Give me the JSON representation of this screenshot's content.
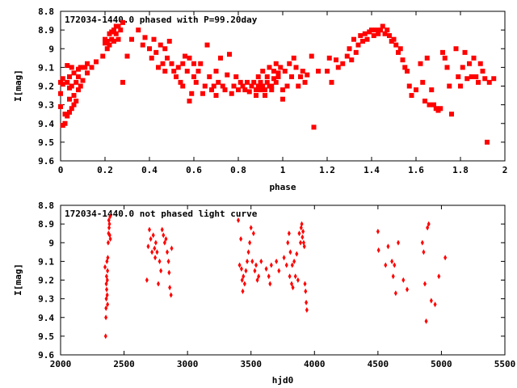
{
  "colors": {
    "series": "#ff0000"
  },
  "chart_data": [
    {
      "type": "scatter",
      "title": "172034-1440.0 phased with P=99.20day",
      "xlabel": "phase",
      "ylabel": "I[mag]",
      "xlim": [
        0,
        2
      ],
      "ylim": [
        8.8,
        9.6
      ],
      "y_inverted": true,
      "xticks": [
        0,
        0.2,
        0.4,
        0.6,
        0.8,
        1,
        1.2,
        1.4,
        1.6,
        1.8,
        2
      ],
      "xtick_labels": [
        "0",
        "0.2",
        "0.4",
        "0.6",
        "0.8",
        "1",
        "1.2",
        "1.4",
        "1.6",
        "1.8",
        "2"
      ],
      "yticks": [
        8.8,
        8.9,
        9.0,
        9.1,
        9.2,
        9.3,
        9.4,
        9.5,
        9.6
      ],
      "ytick_labels": [
        "8.8",
        "8.9",
        "9",
        "9.1",
        "9.2",
        "9.3",
        "9.4",
        "9.5",
        "9.6"
      ],
      "marker": "square",
      "points": [
        [
          0.0,
          9.18
        ],
        [
          0.0,
          9.24
        ],
        [
          0.0,
          9.31
        ],
        [
          0.01,
          9.16
        ],
        [
          0.01,
          9.19
        ],
        [
          0.01,
          9.41
        ],
        [
          0.02,
          9.4
        ],
        [
          0.02,
          9.35
        ],
        [
          0.03,
          9.09
        ],
        [
          0.03,
          9.18
        ],
        [
          0.03,
          9.36
        ],
        [
          0.04,
          9.15
        ],
        [
          0.04,
          9.21
        ],
        [
          0.04,
          9.27
        ],
        [
          0.04,
          9.34
        ],
        [
          0.05,
          9.1
        ],
        [
          0.05,
          9.2
        ],
        [
          0.05,
          9.32
        ],
        [
          0.06,
          9.13
        ],
        [
          0.06,
          9.25
        ],
        [
          0.06,
          9.3
        ],
        [
          0.07,
          9.18
        ],
        [
          0.07,
          9.28
        ],
        [
          0.08,
          9.11
        ],
        [
          0.08,
          9.22
        ],
        [
          0.08,
          9.15
        ],
        [
          0.09,
          9.2
        ],
        [
          0.09,
          9.1
        ],
        [
          0.1,
          9.17
        ],
        [
          0.11,
          9.1
        ],
        [
          0.12,
          9.08
        ],
        [
          0.12,
          9.13
        ],
        [
          0.14,
          9.1
        ],
        [
          0.16,
          9.07
        ],
        [
          0.19,
          9.04
        ],
        [
          0.2,
          8.97
        ],
        [
          0.2,
          8.95
        ],
        [
          0.21,
          8.96
        ],
        [
          0.21,
          9.0
        ],
        [
          0.22,
          8.92
        ],
        [
          0.22,
          8.98
        ],
        [
          0.23,
          8.95
        ],
        [
          0.23,
          8.91
        ],
        [
          0.24,
          8.9
        ],
        [
          0.24,
          8.96
        ],
        [
          0.25,
          8.88
        ],
        [
          0.25,
          8.92
        ],
        [
          0.26,
          8.95
        ],
        [
          0.26,
          8.88
        ],
        [
          0.27,
          8.9
        ],
        [
          0.28,
          8.86
        ],
        [
          0.28,
          9.18
        ],
        [
          0.3,
          9.04
        ],
        [
          0.32,
          8.95
        ],
        [
          0.35,
          8.9
        ],
        [
          0.37,
          8.98
        ],
        [
          0.38,
          8.94
        ],
        [
          0.4,
          9.0
        ],
        [
          0.41,
          9.05
        ],
        [
          0.42,
          8.95
        ],
        [
          0.43,
          9.02
        ],
        [
          0.44,
          9.1
        ],
        [
          0.45,
          8.98
        ],
        [
          0.46,
          9.08
        ],
        [
          0.47,
          9.12
        ],
        [
          0.47,
          9.0
        ],
        [
          0.48,
          9.05
        ],
        [
          0.49,
          8.96
        ],
        [
          0.5,
          9.08
        ],
        [
          0.51,
          9.12
        ],
        [
          0.52,
          9.15
        ],
        [
          0.53,
          9.1
        ],
        [
          0.54,
          9.18
        ],
        [
          0.55,
          9.08
        ],
        [
          0.55,
          9.2
        ],
        [
          0.56,
          9.04
        ],
        [
          0.57,
          9.12
        ],
        [
          0.58,
          9.05
        ],
        [
          0.58,
          9.28
        ],
        [
          0.59,
          9.24
        ],
        [
          0.6,
          9.15
        ],
        [
          0.6,
          9.08
        ],
        [
          0.61,
          9.18
        ],
        [
          0.62,
          9.12
        ],
        [
          0.63,
          9.08
        ],
        [
          0.64,
          9.24
        ],
        [
          0.65,
          9.2
        ],
        [
          0.66,
          8.98
        ],
        [
          0.67,
          9.15
        ],
        [
          0.68,
          9.22
        ],
        [
          0.69,
          9.2
        ],
        [
          0.7,
          9.25
        ],
        [
          0.7,
          9.12
        ],
        [
          0.71,
          9.18
        ],
        [
          0.72,
          9.05
        ],
        [
          0.73,
          9.2
        ],
        [
          0.74,
          9.22
        ],
        [
          0.75,
          9.14
        ],
        [
          0.76,
          9.03
        ],
        [
          0.77,
          9.24
        ],
        [
          0.78,
          9.2
        ],
        [
          0.79,
          9.15
        ],
        [
          0.8,
          9.22
        ],
        [
          0.81,
          9.18
        ],
        [
          0.82,
          9.2
        ],
        [
          0.83,
          9.22
        ],
        [
          0.84,
          9.18
        ],
        [
          0.85,
          9.23
        ],
        [
          0.86,
          9.2
        ],
        [
          0.87,
          9.18
        ],
        [
          0.88,
          9.22
        ],
        [
          0.88,
          9.25
        ],
        [
          0.89,
          9.2
        ],
        [
          0.89,
          9.15
        ],
        [
          0.9,
          9.22
        ],
        [
          0.9,
          9.18
        ],
        [
          0.91,
          9.2
        ],
        [
          0.91,
          9.12
        ],
        [
          0.92,
          9.22
        ],
        [
          0.92,
          9.25
        ],
        [
          0.93,
          9.18
        ],
        [
          0.93,
          9.15
        ],
        [
          0.94,
          9.2
        ],
        [
          0.94,
          9.1
        ],
        [
          0.95,
          9.2
        ],
        [
          0.95,
          9.22
        ],
        [
          0.96,
          9.16
        ],
        [
          0.96,
          9.12
        ],
        [
          0.97,
          9.18
        ],
        [
          0.97,
          9.08
        ],
        [
          0.98,
          9.15
        ],
        [
          0.98,
          9.13
        ],
        [
          0.99,
          9.1
        ],
        [
          1.0,
          9.22
        ],
        [
          1.0,
          9.27
        ],
        [
          1.01,
          9.12
        ],
        [
          1.02,
          9.2
        ],
        [
          1.03,
          9.08
        ],
        [
          1.04,
          9.15
        ],
        [
          1.05,
          9.05
        ],
        [
          1.06,
          9.1
        ],
        [
          1.07,
          9.2
        ],
        [
          1.08,
          9.15
        ],
        [
          1.09,
          9.12
        ],
        [
          1.1,
          9.18
        ],
        [
          1.11,
          9.14
        ],
        [
          1.13,
          9.04
        ],
        [
          1.14,
          9.42
        ],
        [
          1.16,
          9.12
        ],
        [
          1.2,
          9.12
        ],
        [
          1.21,
          9.05
        ],
        [
          1.22,
          9.18
        ],
        [
          1.24,
          9.06
        ],
        [
          1.25,
          9.1
        ],
        [
          1.27,
          9.08
        ],
        [
          1.29,
          9.04
        ],
        [
          1.3,
          9.0
        ],
        [
          1.31,
          9.06
        ],
        [
          1.32,
          8.95
        ],
        [
          1.33,
          9.02
        ],
        [
          1.34,
          8.98
        ],
        [
          1.35,
          8.93
        ],
        [
          1.36,
          8.96
        ],
        [
          1.37,
          8.92
        ],
        [
          1.38,
          8.95
        ],
        [
          1.39,
          8.91
        ],
        [
          1.4,
          8.9
        ],
        [
          1.41,
          8.93
        ],
        [
          1.42,
          8.9
        ],
        [
          1.43,
          8.92
        ],
        [
          1.44,
          8.9
        ],
        [
          1.45,
          8.88
        ],
        [
          1.46,
          8.92
        ],
        [
          1.47,
          8.9
        ],
        [
          1.48,
          8.93
        ],
        [
          1.49,
          8.96
        ],
        [
          1.5,
          8.95
        ],
        [
          1.51,
          8.98
        ],
        [
          1.52,
          9.02
        ],
        [
          1.53,
          9.0
        ],
        [
          1.54,
          9.06
        ],
        [
          1.55,
          9.1
        ],
        [
          1.56,
          9.12
        ],
        [
          1.57,
          9.2
        ],
        [
          1.58,
          9.25
        ],
        [
          1.6,
          9.22
        ],
        [
          1.62,
          9.08
        ],
        [
          1.63,
          9.18
        ],
        [
          1.64,
          9.28
        ],
        [
          1.65,
          9.05
        ],
        [
          1.66,
          9.3
        ],
        [
          1.67,
          9.22
        ],
        [
          1.68,
          9.3
        ],
        [
          1.69,
          9.32
        ],
        [
          1.7,
          9.33
        ],
        [
          1.71,
          9.32
        ],
        [
          1.72,
          9.02
        ],
        [
          1.73,
          9.05
        ],
        [
          1.74,
          9.1
        ],
        [
          1.75,
          9.2
        ],
        [
          1.76,
          9.35
        ],
        [
          1.78,
          9.0
        ],
        [
          1.79,
          9.15
        ],
        [
          1.8,
          9.2
        ],
        [
          1.81,
          9.1
        ],
        [
          1.82,
          9.02
        ],
        [
          1.83,
          9.16
        ],
        [
          1.84,
          9.08
        ],
        [
          1.85,
          9.15
        ],
        [
          1.86,
          9.05
        ],
        [
          1.87,
          9.15
        ],
        [
          1.88,
          9.18
        ],
        [
          1.89,
          9.08
        ],
        [
          1.9,
          9.12
        ],
        [
          1.91,
          9.16
        ],
        [
          1.92,
          9.5
        ],
        [
          1.93,
          9.18
        ],
        [
          1.95,
          9.16
        ]
      ]
    },
    {
      "type": "scatter",
      "title": "172034-1440.0 not phased light curve",
      "xlabel": "hjd0",
      "ylabel": "I[mag]",
      "xlim": [
        2000,
        5500
      ],
      "ylim": [
        8.8,
        9.6
      ],
      "y_inverted": true,
      "xticks": [
        2000,
        2500,
        3000,
        3500,
        4000,
        4500,
        5000,
        5500
      ],
      "xtick_labels": [
        "2000",
        "2500",
        "3000",
        "3500",
        "4000",
        "4500",
        "5000",
        "5500"
      ],
      "yticks": [
        8.8,
        8.9,
        9.0,
        9.1,
        9.2,
        9.3,
        9.4,
        9.5,
        9.6
      ],
      "ytick_labels": [
        "8.8",
        "8.9",
        "9",
        "9.1",
        "9.2",
        "9.3",
        "9.4",
        "9.5",
        "9.6"
      ],
      "marker": "diamond",
      "points": [
        [
          2350,
          9.13
        ],
        [
          2355,
          9.5
        ],
        [
          2357,
          9.4
        ],
        [
          2358,
          9.35
        ],
        [
          2360,
          9.3
        ],
        [
          2360,
          9.22
        ],
        [
          2362,
          9.18
        ],
        [
          2363,
          9.25
        ],
        [
          2365,
          9.1
        ],
        [
          2367,
          9.28
        ],
        [
          2368,
          9.2
        ],
        [
          2370,
          9.33
        ],
        [
          2370,
          9.15
        ],
        [
          2372,
          9.08
        ],
        [
          2375,
          9.0
        ],
        [
          2378,
          8.95
        ],
        [
          2380,
          8.88
        ],
        [
          2382,
          8.92
        ],
        [
          2385,
          8.9
        ],
        [
          2387,
          8.96
        ],
        [
          2390,
          8.86
        ],
        [
          2392,
          8.98
        ],
        [
          2680,
          9.2
        ],
        [
          2690,
          9.02
        ],
        [
          2700,
          8.93
        ],
        [
          2710,
          8.98
        ],
        [
          2720,
          9.05
        ],
        [
          2730,
          8.96
        ],
        [
          2740,
          9.03
        ],
        [
          2745,
          9.08
        ],
        [
          2750,
          9.0
        ],
        [
          2760,
          9.05
        ],
        [
          2770,
          9.22
        ],
        [
          2780,
          9.1
        ],
        [
          2790,
          9.15
        ],
        [
          2800,
          8.93
        ],
        [
          2810,
          8.96
        ],
        [
          2820,
          9.0
        ],
        [
          2830,
          8.98
        ],
        [
          2840,
          9.05
        ],
        [
          2850,
          9.1
        ],
        [
          2855,
          9.16
        ],
        [
          2860,
          9.24
        ],
        [
          2870,
          9.28
        ],
        [
          2875,
          9.03
        ],
        [
          3400,
          8.88
        ],
        [
          3410,
          9.12
        ],
        [
          3420,
          8.98
        ],
        [
          3425,
          9.14
        ],
        [
          3430,
          9.2
        ],
        [
          3435,
          9.26
        ],
        [
          3440,
          9.18
        ],
        [
          3450,
          9.22
        ],
        [
          3460,
          9.15
        ],
        [
          3470,
          9.1
        ],
        [
          3480,
          9.05
        ],
        [
          3490,
          9.0
        ],
        [
          3500,
          8.92
        ],
        [
          3510,
          9.1
        ],
        [
          3520,
          8.95
        ],
        [
          3530,
          9.15
        ],
        [
          3540,
          9.12
        ],
        [
          3550,
          9.2
        ],
        [
          3560,
          9.18
        ],
        [
          3580,
          9.1
        ],
        [
          3620,
          9.14
        ],
        [
          3640,
          9.18
        ],
        [
          3650,
          9.22
        ],
        [
          3660,
          9.12
        ],
        [
          3700,
          9.1
        ],
        [
          3720,
          9.15
        ],
        [
          3760,
          9.08
        ],
        [
          3780,
          9.12
        ],
        [
          3790,
          9.0
        ],
        [
          3800,
          8.95
        ],
        [
          3805,
          9.18
        ],
        [
          3810,
          9.05
        ],
        [
          3820,
          9.22
        ],
        [
          3825,
          9.12
        ],
        [
          3830,
          9.24
        ],
        [
          3840,
          9.1
        ],
        [
          3850,
          9.18
        ],
        [
          3860,
          9.06
        ],
        [
          3870,
          9.2
        ],
        [
          3880,
          8.95
        ],
        [
          3890,
          9.0
        ],
        [
          3895,
          8.92
        ],
        [
          3900,
          8.9
        ],
        [
          3905,
          8.97
        ],
        [
          3910,
          8.94
        ],
        [
          3915,
          9.0
        ],
        [
          3920,
          9.02
        ],
        [
          3925,
          9.22
        ],
        [
          3930,
          9.26
        ],
        [
          3935,
          9.32
        ],
        [
          3940,
          9.36
        ],
        [
          4500,
          8.94
        ],
        [
          4505,
          9.04
        ],
        [
          4560,
          9.12
        ],
        [
          4580,
          9.02
        ],
        [
          4610,
          9.1
        ],
        [
          4620,
          9.18
        ],
        [
          4630,
          9.12
        ],
        [
          4640,
          9.27
        ],
        [
          4660,
          9.0
        ],
        [
          4700,
          9.2
        ],
        [
          4730,
          9.25
        ],
        [
          4850,
          9.0
        ],
        [
          4860,
          9.05
        ],
        [
          4870,
          9.22
        ],
        [
          4880,
          9.42
        ],
        [
          4890,
          8.92
        ],
        [
          4900,
          8.9
        ],
        [
          4920,
          9.31
        ],
        [
          4950,
          9.33
        ],
        [
          4980,
          9.18
        ],
        [
          5030,
          9.08
        ]
      ]
    }
  ]
}
